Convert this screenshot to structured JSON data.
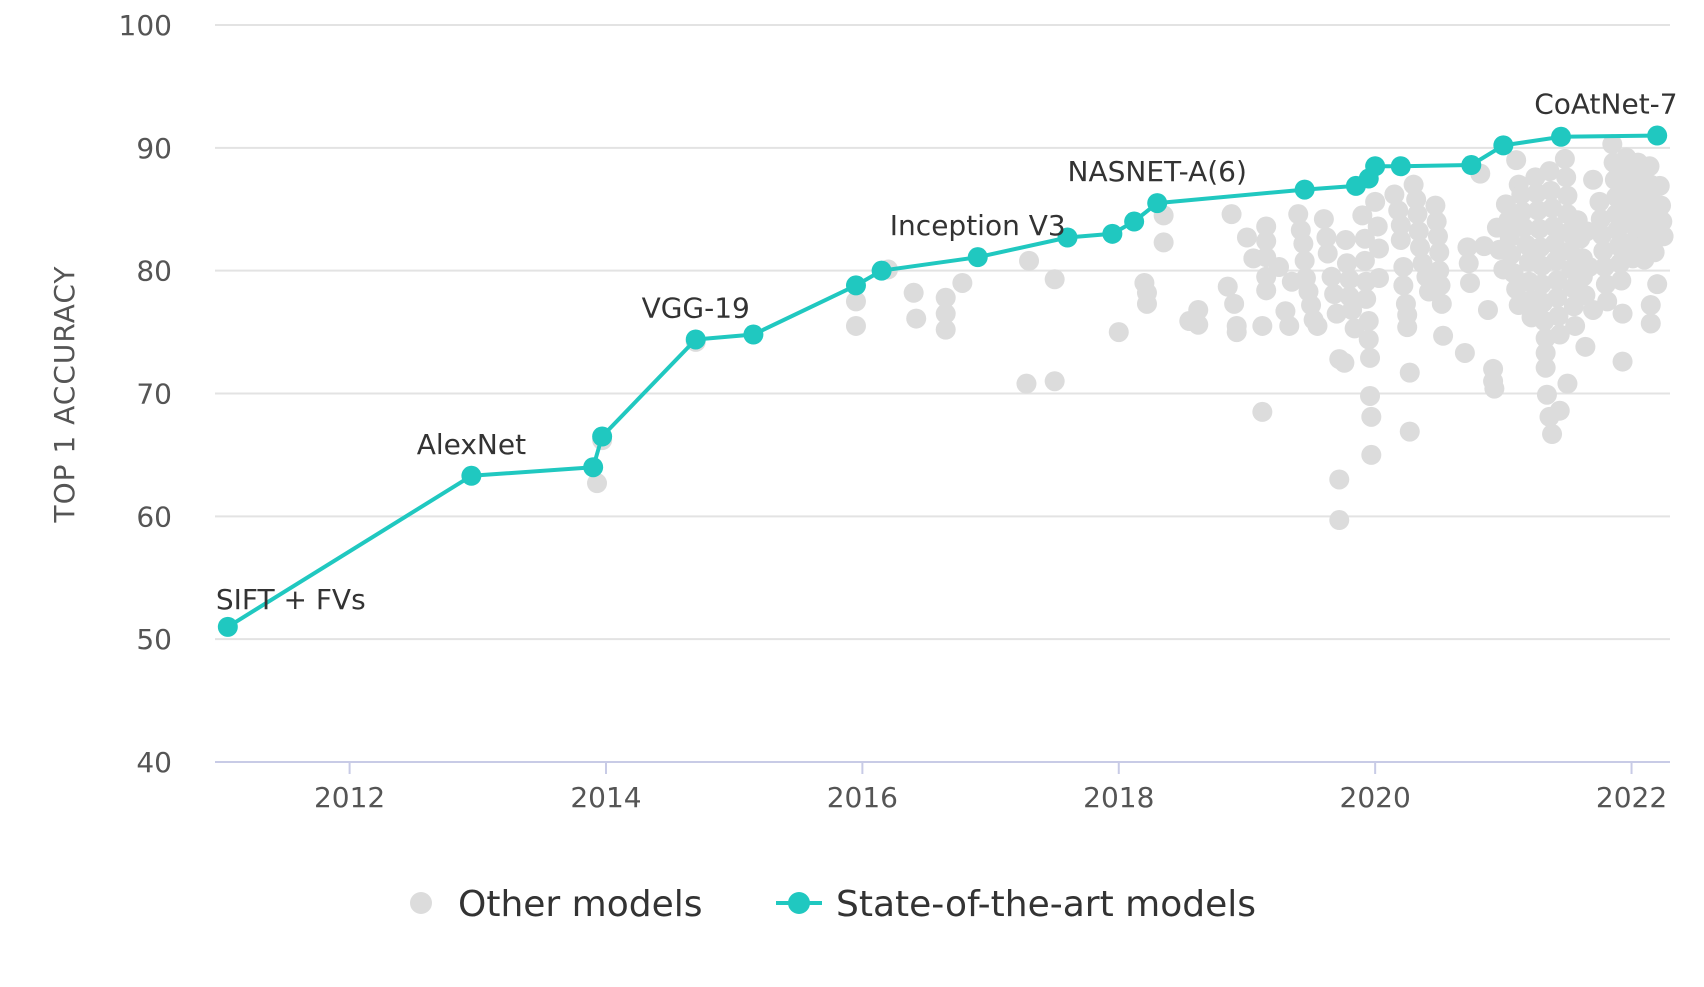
{
  "chart_data": {
    "type": "scatter",
    "title": "",
    "xlabel": "",
    "ylabel": "TOP 1 ACCURACY",
    "xlim": [
      2010.95,
      2022.3
    ],
    "ylim": [
      40,
      100
    ],
    "x_ticks": [
      2012,
      2014,
      2016,
      2018,
      2020,
      2022
    ],
    "y_ticks": [
      40,
      50,
      60,
      70,
      80,
      90,
      100
    ],
    "grid": "horizontal",
    "legend_position": "bottom-center",
    "colors": {
      "other": "#dcdcdc",
      "sota": "#20c8c0",
      "grid": "#e3e3e3",
      "axis": "#c8cbe6"
    },
    "legend": [
      {
        "key": "other",
        "label": "Other models"
      },
      {
        "key": "sota",
        "label": "State-of-the-art models"
      }
    ],
    "annotations": [
      {
        "text": "SIFT + FVs",
        "x": 2011.05,
        "y": 51
      },
      {
        "text": "AlexNet",
        "x": 2012.95,
        "y": 63.3
      },
      {
        "text": "VGG-19",
        "x": 2014.7,
        "y": 74.4
      },
      {
        "text": "Inception V3",
        "x": 2016.9,
        "y": 81.1
      },
      {
        "text": "NASNET-A(6)",
        "x": 2018.3,
        "y": 85.5
      },
      {
        "text": "CoAtNet-7",
        "x": 2021.8,
        "y": 91
      }
    ],
    "series": [
      {
        "name": "State-of-the-art models",
        "key": "sota",
        "points": [
          [
            2011.05,
            51.0
          ],
          [
            2012.95,
            63.3
          ],
          [
            2013.9,
            64.0
          ],
          [
            2013.97,
            66.5
          ],
          [
            2014.7,
            74.4
          ],
          [
            2015.15,
            74.8
          ],
          [
            2015.95,
            78.8
          ],
          [
            2016.15,
            80.0
          ],
          [
            2016.9,
            81.1
          ],
          [
            2017.6,
            82.7
          ],
          [
            2017.95,
            83.0
          ],
          [
            2018.12,
            84.0
          ],
          [
            2018.3,
            85.5
          ],
          [
            2019.45,
            86.6
          ],
          [
            2019.85,
            86.9
          ],
          [
            2019.95,
            87.5
          ],
          [
            2020.0,
            88.5
          ],
          [
            2020.2,
            88.5
          ],
          [
            2020.75,
            88.6
          ],
          [
            2021.0,
            90.2
          ],
          [
            2021.45,
            90.9
          ],
          [
            2022.2,
            91.0
          ]
        ]
      },
      {
        "name": "Other models",
        "key": "other",
        "points": [
          [
            2013.93,
            62.7
          ],
          [
            2013.97,
            66.2
          ],
          [
            2014.7,
            74.2
          ],
          [
            2015.95,
            77.5
          ],
          [
            2015.95,
            75.5
          ],
          [
            2016.2,
            80.1
          ],
          [
            2016.4,
            78.2
          ],
          [
            2016.42,
            76.1
          ],
          [
            2016.65,
            77.8
          ],
          [
            2016.65,
            76.5
          ],
          [
            2016.65,
            75.2
          ],
          [
            2016.78,
            79.0
          ],
          [
            2017.3,
            80.8
          ],
          [
            2017.28,
            70.8
          ],
          [
            2017.5,
            71.0
          ],
          [
            2017.5,
            79.3
          ],
          [
            2018.0,
            75.0
          ],
          [
            2018.2,
            79.0
          ],
          [
            2018.22,
            78.2
          ],
          [
            2018.22,
            77.3
          ],
          [
            2018.35,
            84.5
          ],
          [
            2018.35,
            82.3
          ],
          [
            2018.55,
            75.9
          ],
          [
            2018.62,
            76.8
          ],
          [
            2018.62,
            75.6
          ],
          [
            2018.85,
            78.7
          ],
          [
            2018.88,
            84.6
          ],
          [
            2018.9,
            77.3
          ],
          [
            2018.92,
            75.0
          ],
          [
            2018.92,
            75.5
          ],
          [
            2019.12,
            68.5
          ],
          [
            2019.12,
            75.5
          ],
          [
            2019.0,
            82.7
          ],
          [
            2019.05,
            81.0
          ],
          [
            2019.15,
            83.6
          ],
          [
            2019.15,
            82.4
          ],
          [
            2019.15,
            81.1
          ],
          [
            2019.15,
            79.5
          ],
          [
            2019.15,
            78.4
          ],
          [
            2019.25,
            80.3
          ],
          [
            2019.3,
            76.7
          ],
          [
            2019.33,
            75.5
          ],
          [
            2019.35,
            79.1
          ],
          [
            2019.4,
            84.6
          ],
          [
            2019.42,
            83.3
          ],
          [
            2019.44,
            82.2
          ],
          [
            2019.45,
            80.8
          ],
          [
            2019.46,
            79.4
          ],
          [
            2019.48,
            78.3
          ],
          [
            2019.5,
            77.2
          ],
          [
            2019.52,
            76.0
          ],
          [
            2019.55,
            75.5
          ],
          [
            2019.6,
            84.2
          ],
          [
            2019.62,
            82.7
          ],
          [
            2019.63,
            81.4
          ],
          [
            2019.66,
            79.5
          ],
          [
            2019.68,
            78.1
          ],
          [
            2019.7,
            76.5
          ],
          [
            2019.72,
            72.8
          ],
          [
            2019.77,
            82.5
          ],
          [
            2019.78,
            80.6
          ],
          [
            2019.8,
            79.3
          ],
          [
            2019.8,
            77.9
          ],
          [
            2019.82,
            76.8
          ],
          [
            2019.84,
            75.3
          ],
          [
            2019.72,
            63.0
          ],
          [
            2019.72,
            59.7
          ],
          [
            2019.76,
            72.5
          ],
          [
            2019.9,
            84.5
          ],
          [
            2019.92,
            82.6
          ],
          [
            2019.92,
            80.8
          ],
          [
            2019.93,
            79.1
          ],
          [
            2019.93,
            77.7
          ],
          [
            2019.95,
            75.9
          ],
          [
            2019.95,
            74.4
          ],
          [
            2019.96,
            72.9
          ],
          [
            2019.96,
            69.8
          ],
          [
            2019.97,
            68.1
          ],
          [
            2019.97,
            65.0
          ],
          [
            2020.0,
            85.6
          ],
          [
            2020.02,
            83.6
          ],
          [
            2020.03,
            81.8
          ],
          [
            2020.03,
            79.4
          ],
          [
            2020.15,
            86.2
          ],
          [
            2020.18,
            84.9
          ],
          [
            2020.2,
            83.7
          ],
          [
            2020.2,
            82.5
          ],
          [
            2020.22,
            80.3
          ],
          [
            2020.22,
            78.8
          ],
          [
            2020.24,
            77.3
          ],
          [
            2020.25,
            76.4
          ],
          [
            2020.25,
            75.4
          ],
          [
            2020.27,
            71.7
          ],
          [
            2020.27,
            66.9
          ],
          [
            2020.3,
            87.0
          ],
          [
            2020.32,
            85.8
          ],
          [
            2020.33,
            84.6
          ],
          [
            2020.34,
            83.2
          ],
          [
            2020.35,
            81.9
          ],
          [
            2020.37,
            80.6
          ],
          [
            2020.4,
            79.5
          ],
          [
            2020.42,
            78.3
          ],
          [
            2020.47,
            85.3
          ],
          [
            2020.48,
            84.0
          ],
          [
            2020.49,
            82.8
          ],
          [
            2020.5,
            81.5
          ],
          [
            2020.5,
            80.0
          ],
          [
            2020.51,
            78.8
          ],
          [
            2020.52,
            77.3
          ],
          [
            2020.53,
            74.7
          ],
          [
            2020.7,
            73.3
          ],
          [
            2020.72,
            81.9
          ],
          [
            2020.73,
            80.6
          ],
          [
            2020.74,
            79.0
          ],
          [
            2020.82,
            87.9
          ],
          [
            2020.85,
            82.0
          ],
          [
            2020.88,
            76.8
          ],
          [
            2020.92,
            72.0
          ],
          [
            2020.92,
            71.0
          ],
          [
            2020.93,
            70.4
          ],
          [
            2020.95,
            83.5
          ],
          [
            2020.97,
            81.7
          ],
          [
            2021.0,
            80.1
          ],
          [
            2021.02,
            85.4
          ],
          [
            2021.04,
            84.1
          ],
          [
            2021.05,
            82.7
          ],
          [
            2021.06,
            81.3
          ],
          [
            2021.08,
            79.8
          ],
          [
            2021.1,
            78.5
          ],
          [
            2021.12,
            77.2
          ],
          [
            2021.1,
            89.0
          ],
          [
            2021.12,
            87.0
          ],
          [
            2021.14,
            86.2
          ],
          [
            2021.15,
            84.8
          ],
          [
            2021.16,
            83.5
          ],
          [
            2021.18,
            82.1
          ],
          [
            2021.2,
            80.7
          ],
          [
            2021.2,
            79.1
          ],
          [
            2021.22,
            77.6
          ],
          [
            2021.22,
            76.2
          ],
          [
            2021.25,
            87.6
          ],
          [
            2021.26,
            86.3
          ],
          [
            2021.27,
            84.9
          ],
          [
            2021.28,
            83.4
          ],
          [
            2021.29,
            81.9
          ],
          [
            2021.3,
            80.4
          ],
          [
            2021.3,
            78.9
          ],
          [
            2021.31,
            77.4
          ],
          [
            2021.32,
            75.9
          ],
          [
            2021.33,
            74.5
          ],
          [
            2021.33,
            73.3
          ],
          [
            2021.33,
            72.1
          ],
          [
            2021.34,
            69.9
          ],
          [
            2021.36,
            88.1
          ],
          [
            2021.37,
            86.5
          ],
          [
            2021.38,
            85.1
          ],
          [
            2021.39,
            83.6
          ],
          [
            2021.4,
            82.2
          ],
          [
            2021.41,
            80.8
          ],
          [
            2021.42,
            79.2
          ],
          [
            2021.42,
            77.8
          ],
          [
            2021.43,
            76.3
          ],
          [
            2021.44,
            74.8
          ],
          [
            2021.36,
            68.1
          ],
          [
            2021.38,
            66.7
          ],
          [
            2021.44,
            68.6
          ],
          [
            2021.48,
            89.1
          ],
          [
            2021.49,
            87.6
          ],
          [
            2021.5,
            86.1
          ],
          [
            2021.5,
            84.6
          ],
          [
            2021.51,
            83.1
          ],
          [
            2021.52,
            81.6
          ],
          [
            2021.53,
            80.1
          ],
          [
            2021.54,
            78.6
          ],
          [
            2021.55,
            77.1
          ],
          [
            2021.56,
            75.5
          ],
          [
            2021.5,
            70.8
          ],
          [
            2021.58,
            84.1
          ],
          [
            2021.6,
            82.6
          ],
          [
            2021.62,
            81.0
          ],
          [
            2021.62,
            79.5
          ],
          [
            2021.64,
            78.0
          ],
          [
            2021.64,
            73.8
          ],
          [
            2021.65,
            83.2
          ],
          [
            2021.67,
            80.3
          ],
          [
            2021.7,
            76.8
          ],
          [
            2021.7,
            87.4
          ],
          [
            2021.75,
            85.6
          ],
          [
            2021.76,
            84.2
          ],
          [
            2021.77,
            82.9
          ],
          [
            2021.78,
            81.6
          ],
          [
            2021.79,
            80.3
          ],
          [
            2021.8,
            78.9
          ],
          [
            2021.81,
            77.5
          ],
          [
            2021.85,
            90.3
          ],
          [
            2021.86,
            88.8
          ],
          [
            2021.87,
            87.4
          ],
          [
            2021.88,
            86.0
          ],
          [
            2021.88,
            84.6
          ],
          [
            2021.89,
            83.3
          ],
          [
            2021.9,
            82.0
          ],
          [
            2021.91,
            80.6
          ],
          [
            2021.92,
            79.2
          ],
          [
            2021.93,
            76.5
          ],
          [
            2021.93,
            72.6
          ],
          [
            2021.96,
            89.2
          ],
          [
            2021.97,
            87.8
          ],
          [
            2021.98,
            86.5
          ],
          [
            2021.99,
            85.1
          ],
          [
            2022.0,
            83.8
          ],
          [
            2022.0,
            82.3
          ],
          [
            2022.01,
            81.0
          ],
          [
            2022.05,
            88.8
          ],
          [
            2022.06,
            87.4
          ],
          [
            2022.07,
            86.1
          ],
          [
            2022.08,
            84.8
          ],
          [
            2022.09,
            83.4
          ],
          [
            2022.1,
            82.1
          ],
          [
            2022.1,
            80.9
          ],
          [
            2022.14,
            88.5
          ],
          [
            2022.15,
            87.0
          ],
          [
            2022.16,
            85.6
          ],
          [
            2022.17,
            84.2
          ],
          [
            2022.18,
            82.7
          ],
          [
            2022.18,
            81.5
          ],
          [
            2022.15,
            77.2
          ],
          [
            2022.15,
            75.7
          ],
          [
            2022.2,
            78.9
          ],
          [
            2022.22,
            86.9
          ],
          [
            2022.23,
            85.3
          ],
          [
            2022.24,
            84.0
          ],
          [
            2022.25,
            82.8
          ]
        ]
      }
    ]
  }
}
